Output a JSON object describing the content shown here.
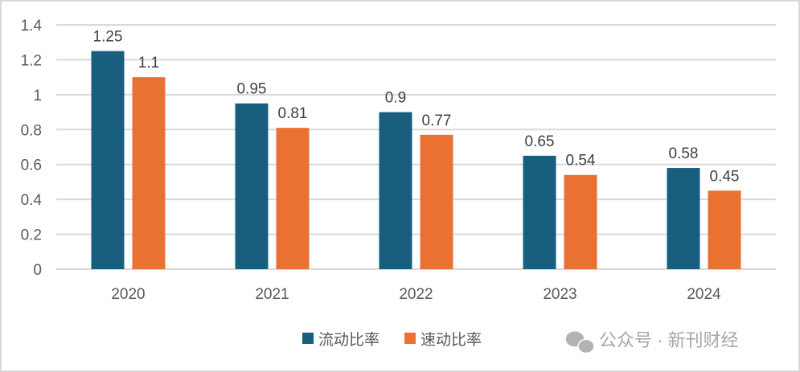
{
  "chart_data": {
    "type": "bar",
    "categories": [
      "2020",
      "2021",
      "2022",
      "2023",
      "2024"
    ],
    "series": [
      {
        "name": "流动比率",
        "values": [
          1.25,
          0.95,
          0.9,
          0.65,
          0.58
        ],
        "color": "#175E7F"
      },
      {
        "name": "速动比率",
        "values": [
          1.1,
          0.81,
          0.77,
          0.54,
          0.45
        ],
        "color": "#EB7132"
      }
    ],
    "ylim": [
      0,
      1.4
    ],
    "yticks": [
      "0",
      "0.2",
      "0.4",
      "0.6",
      "0.8",
      "1",
      "1.2",
      "1.4"
    ],
    "grid": true,
    "legend": "bottom",
    "data_labels": true
  },
  "watermark": {
    "text": "公众号 · 新刊财经",
    "icon": "wechat-icon"
  }
}
